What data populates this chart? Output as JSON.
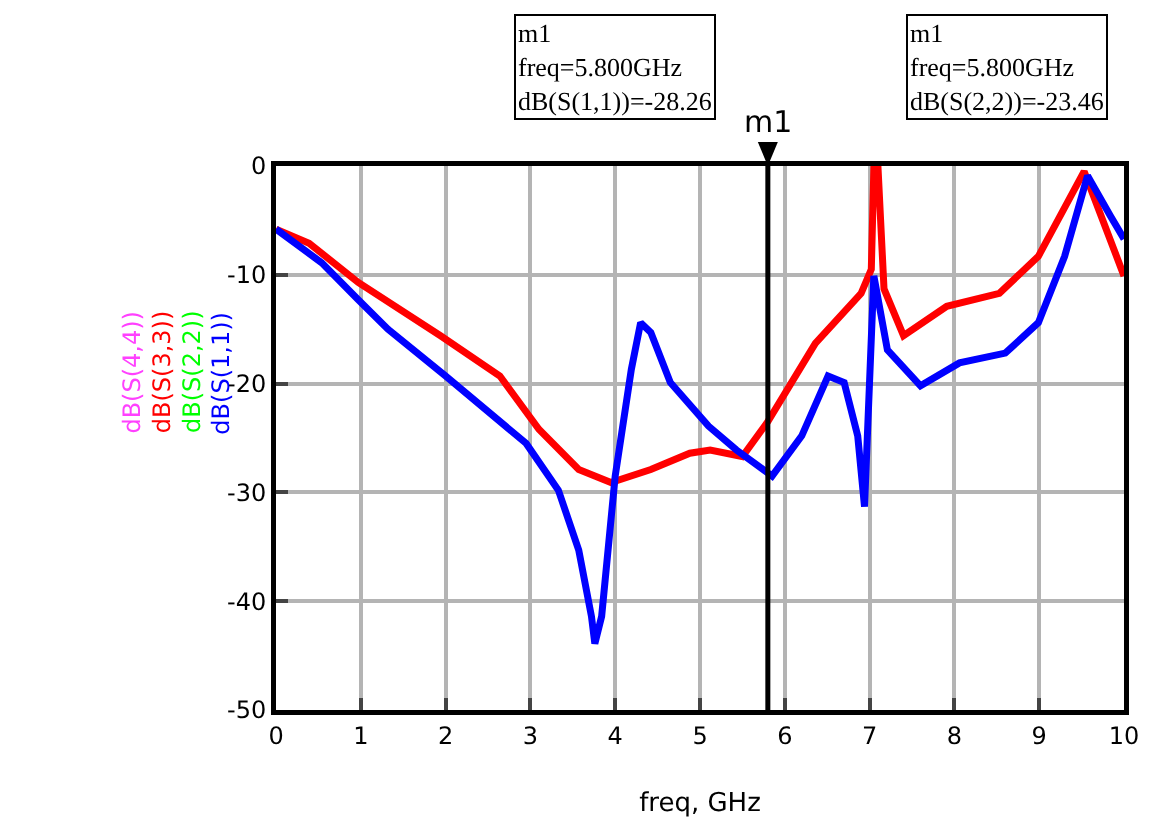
{
  "chart_data": {
    "type": "line",
    "xlabel": "freq, GHz",
    "xlim": [
      0,
      10
    ],
    "xticks": [
      0,
      1,
      2,
      3,
      4,
      5,
      6,
      7,
      8,
      9,
      10
    ],
    "ylim": [
      -50,
      0
    ],
    "yticks": [
      -50,
      -40,
      -30,
      -20,
      -10,
      0
    ],
    "grid": true,
    "legend": "left",
    "marker": "none",
    "line_style": "solid",
    "ref_lines": [
      {
        "axis": "x",
        "value": 5.8,
        "label": "m1",
        "color": "#000000"
      }
    ],
    "annotations": [
      "m1\nfreq=5.800GHz\ndB(S(1,1))=-28.26",
      "m1\nfreq=5.800GHz\ndB(S(2,2))=-23.46"
    ],
    "series": [
      {
        "name": "dB(S(4,4))",
        "color": "#ff40ff"
      },
      {
        "name": "dB(S(3,3))",
        "color": "#ff0000",
        "x": [
          0,
          0.39,
          0.97,
          1.94,
          2.64,
          3.1,
          3.57,
          3.95,
          4.42,
          4.88,
          5.12,
          5.5,
          5.8,
          6.36,
          6.9,
          7.02,
          7.05,
          7.1,
          7.17,
          7.4,
          7.91,
          8.53,
          8.99,
          9.53,
          10
        ],
        "values": [
          -5.8,
          -7.1,
          -10.7,
          -15.6,
          -19.3,
          -24.2,
          -27.9,
          -29.1,
          -27.9,
          -26.4,
          -26.1,
          -26.7,
          -23.5,
          -16.3,
          -11.7,
          -9.5,
          -0.3,
          -0.3,
          -11.3,
          -15.6,
          -12.9,
          -11.7,
          -8.3,
          -0.5,
          -10.1
        ]
      },
      {
        "name": "dB(S(2,2))",
        "color": "#00ff00"
      },
      {
        "name": "dB(S(1,1))",
        "color": "#0000ff",
        "x": [
          0,
          0.54,
          0.97,
          1.32,
          2.0,
          2.95,
          3.33,
          3.57,
          3.72,
          3.76,
          3.84,
          4.0,
          4.19,
          4.3,
          4.42,
          4.65,
          5.1,
          5.43,
          5.85,
          6.2,
          6.51,
          6.7,
          6.86,
          6.94,
          6.98,
          7.05,
          7.21,
          7.6,
          8.06,
          8.6,
          8.99,
          9.3,
          9.57,
          9.84,
          10
        ],
        "values": [
          -5.8,
          -8.9,
          -12.3,
          -15,
          -19.3,
          -25.5,
          -29.8,
          -35.3,
          -41.4,
          -43.9,
          -41.4,
          -28.5,
          -18.7,
          -14.4,
          -15.3,
          -19.9,
          -23.9,
          -26.1,
          -28.5,
          -24.8,
          -19.3,
          -19.9,
          -24.8,
          -31.3,
          -23.6,
          -10.1,
          -16.9,
          -20.2,
          -18.1,
          -17.2,
          -14.4,
          -8.3,
          -0.9,
          -4.6,
          -6.7
        ]
      }
    ]
  }
}
